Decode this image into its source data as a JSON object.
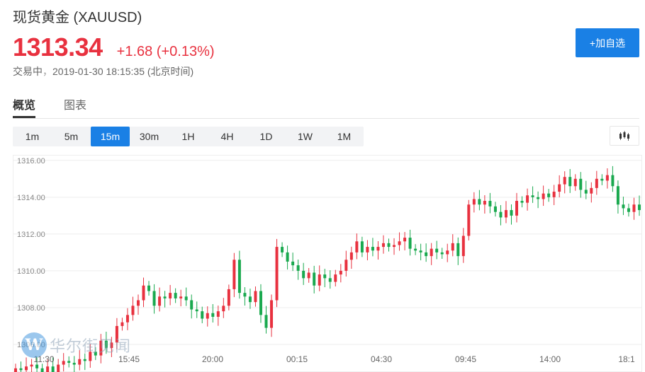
{
  "header": {
    "title": "现货黄金 (XAUUSD)",
    "price": "1313.34",
    "change": "+1.68 (+0.13%)",
    "status_label": "交易中",
    "status_sep": "，",
    "timestamp": "2019-01-30 18:15:35 (北京时间)",
    "add_watch_label": "+加自选"
  },
  "tabs": [
    {
      "label": "概览",
      "active": true
    },
    {
      "label": "图表",
      "active": false
    }
  ],
  "periods": [
    {
      "label": "1m",
      "active": false
    },
    {
      "label": "5m",
      "active": false
    },
    {
      "label": "15m",
      "active": true
    },
    {
      "label": "30m",
      "active": false
    },
    {
      "label": "1H",
      "active": false
    },
    {
      "label": "4H",
      "active": false
    },
    {
      "label": "1D",
      "active": false
    },
    {
      "label": "1W",
      "active": false
    },
    {
      "label": "1M",
      "active": false
    }
  ],
  "chart_type_icon": "candlestick-chart-icon",
  "watermark": {
    "logo_letter": "W",
    "text": "华尔街见闻"
  },
  "colors": {
    "up": "#e8313f",
    "down": "#1aa94f",
    "accent": "#1a80e5",
    "grid": "#eeeeee"
  },
  "chart_data": {
    "type": "candlestick",
    "ylim": [
      1304.5,
      1316.3
    ],
    "y_ticks": [
      "1316.00",
      "1314.00",
      "1312.00",
      "1310.00",
      "1308.00",
      "1306.00"
    ],
    "x_labels": [
      "11:30",
      "15:45",
      "20:00",
      "00:15",
      "04:30",
      "09:45",
      "14:00",
      "18:1"
    ],
    "closes": [
      1304.7,
      1304.6,
      1304.8,
      1304.9,
      1304.7,
      1304.5,
      1304.8,
      1304.5,
      1304.9,
      1305.1,
      1305.0,
      1304.9,
      1305.2,
      1305.1,
      1305.6,
      1305.4,
      1306.2,
      1305.8,
      1306.1,
      1307.0,
      1307.2,
      1307.6,
      1308.1,
      1308.4,
      1309.2,
      1308.9,
      1308.1,
      1308.6,
      1308.5,
      1308.8,
      1308.5,
      1308.6,
      1308.4,
      1307.9,
      1307.8,
      1307.4,
      1307.7,
      1307.5,
      1307.8,
      1308.1,
      1309.0,
      1310.6,
      1308.8,
      1308.6,
      1308.3,
      1308.9,
      1307.6,
      1306.9,
      1308.4,
      1311.3,
      1311.0,
      1310.5,
      1310.3,
      1310.0,
      1309.6,
      1309.9,
      1309.2,
      1309.8,
      1309.6,
      1309.4,
      1309.8,
      1310.0,
      1310.6,
      1311.0,
      1311.6,
      1311.0,
      1311.3,
      1311.1,
      1311.3,
      1311.5,
      1311.3,
      1311.4,
      1311.6,
      1311.8,
      1311.2,
      1311.1,
      1311.0,
      1310.8,
      1311.2,
      1311.0,
      1310.9,
      1311.1,
      1311.5,
      1310.8,
      1311.9,
      1313.6,
      1313.9,
      1313.6,
      1313.8,
      1313.5,
      1313.2,
      1312.9,
      1313.3,
      1313.0,
      1313.8,
      1313.7,
      1314.1,
      1314.0,
      1313.9,
      1314.2,
      1314.0,
      1314.3,
      1314.7,
      1315.1,
      1314.6,
      1315.0,
      1314.4,
      1314.2,
      1314.5,
      1315.0,
      1314.9,
      1315.2,
      1314.6,
      1313.6,
      1313.4,
      1313.2,
      1313.6,
      1313.3
    ]
  }
}
